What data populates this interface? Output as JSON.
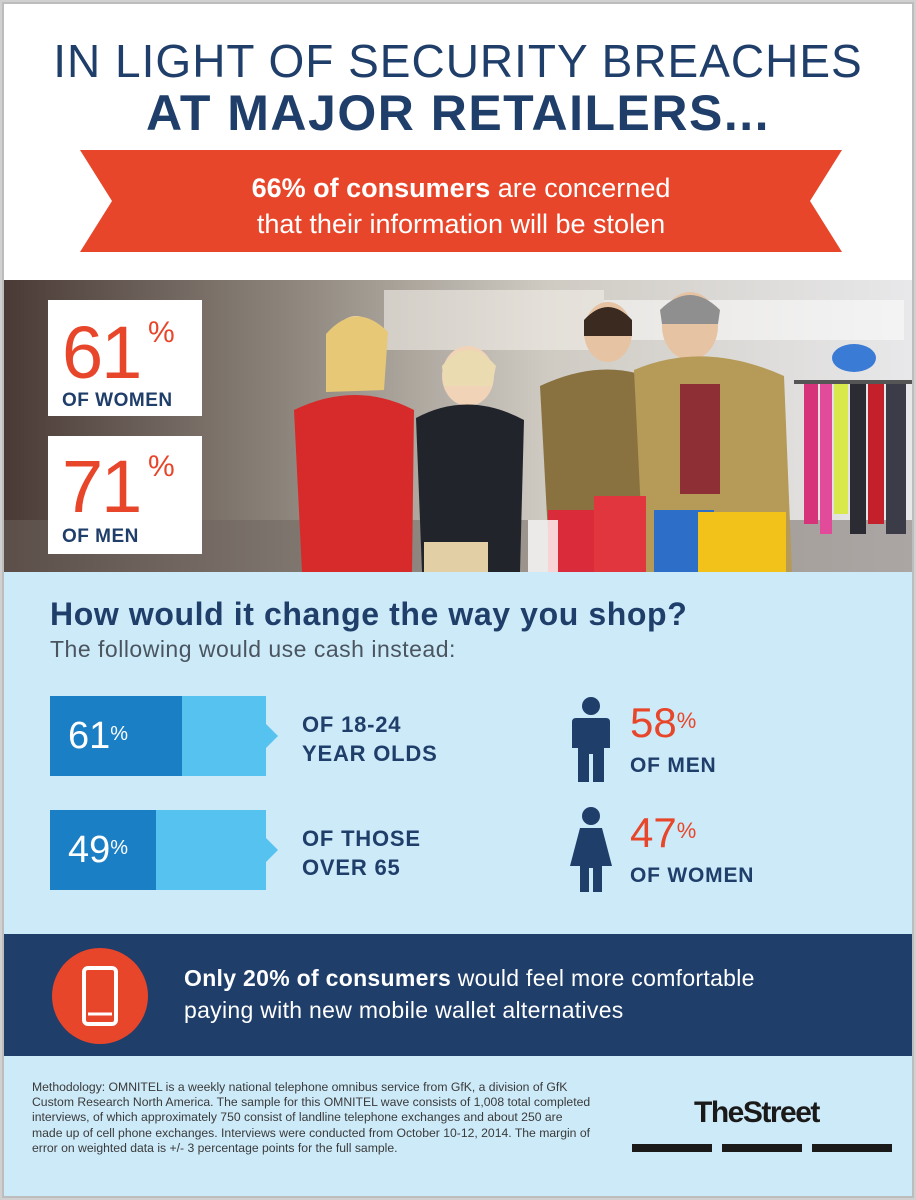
{
  "header": {
    "title_line1": "IN LIGHT OF SECURITY BREACHES",
    "title_line2": "AT MAJOR RETAILERS...",
    "banner_bold": "66% of consumers",
    "banner_rest1": " are concerned",
    "banner_line2": "that their information will be stolen"
  },
  "photo_stats": [
    {
      "value": "61",
      "unit": "%",
      "label": "OF WOMEN"
    },
    {
      "value": "71",
      "unit": "%",
      "label": "OF MEN"
    }
  ],
  "shop": {
    "question": "How would it change the way you shop?",
    "subtitle": "The following would use cash instead:",
    "age_groups": [
      {
        "value": "61",
        "unit": "%",
        "fraction": 0.61,
        "label_line1": "OF 18-24",
        "label_line2": "YEAR OLDS"
      },
      {
        "value": "49",
        "unit": "%",
        "fraction": 0.49,
        "label_line1": "OF THOSE",
        "label_line2": "OVER 65"
      }
    ],
    "genders": [
      {
        "value": "58",
        "unit": "%",
        "label": "OF MEN",
        "icon": "man-icon"
      },
      {
        "value": "47",
        "unit": "%",
        "label": "OF WOMEN",
        "icon": "woman-icon"
      }
    ]
  },
  "mobile": {
    "bold": "Only 20% of consumers",
    "rest1": " would feel more comfortable",
    "line2": "paying with new mobile wallet alternatives",
    "icon": "smartphone-icon"
  },
  "footer": {
    "methodology": "Methodology: OMNITEL is a weekly national telephone omnibus service from GfK, a division of GfK Custom Research North America. The sample for this OMNITEL wave consists of 1,008 total completed interviews, of which approximately 750 consist of landline telephone exchanges and about 250 are made up of cell phone exchanges. Interviews were conducted from October 10-12, 2014. The margin of error on weighted data is +/- 3 percentage points for the full sample.",
    "brand": "TheStreet"
  },
  "colors": {
    "navy": "#1f3e6a",
    "orange": "#e8462a",
    "light_blue": "#cdeaf8",
    "bar_dark": "#1a7fc4",
    "bar_light": "#56c2f0"
  }
}
